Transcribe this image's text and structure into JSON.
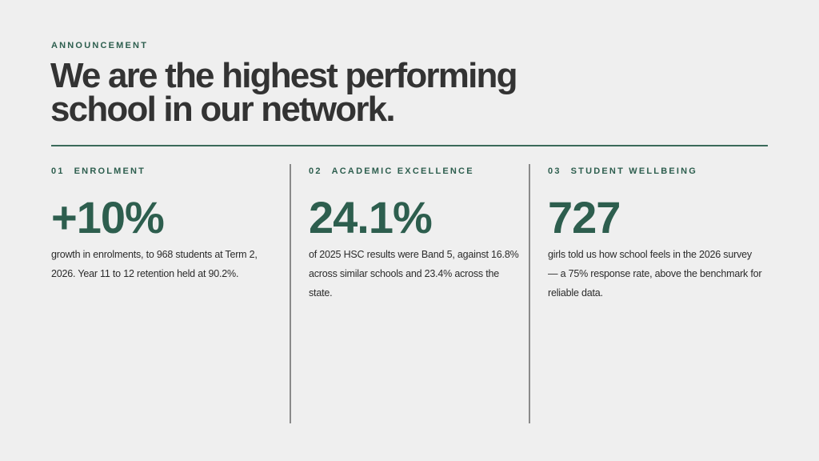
{
  "header": {
    "eyebrow": "ANNOUNCEMENT",
    "title_lines": [
      "We are the highest performing",
      "school in our network."
    ]
  },
  "stats": [
    {
      "number": "01",
      "label": "ENROLMENT",
      "value": "+10%",
      "description": "growth in enrolments, to 968 students at Term 2, 2026. Year 11 to 12 retention held at 90.2%."
    },
    {
      "number": "02",
      "label": "ACADEMIC EXCELLENCE",
      "value": "24.1%",
      "description": "of 2025 HSC results were Band 5, against 16.8% across similar schools and 23.4% across the state."
    },
    {
      "number": "03",
      "label": "STUDENT WELLBEING",
      "value": "727",
      "description": "girls told us how school feels in the 2026 survey — a 75% response rate, above the benchmark for reliable data."
    }
  ]
}
